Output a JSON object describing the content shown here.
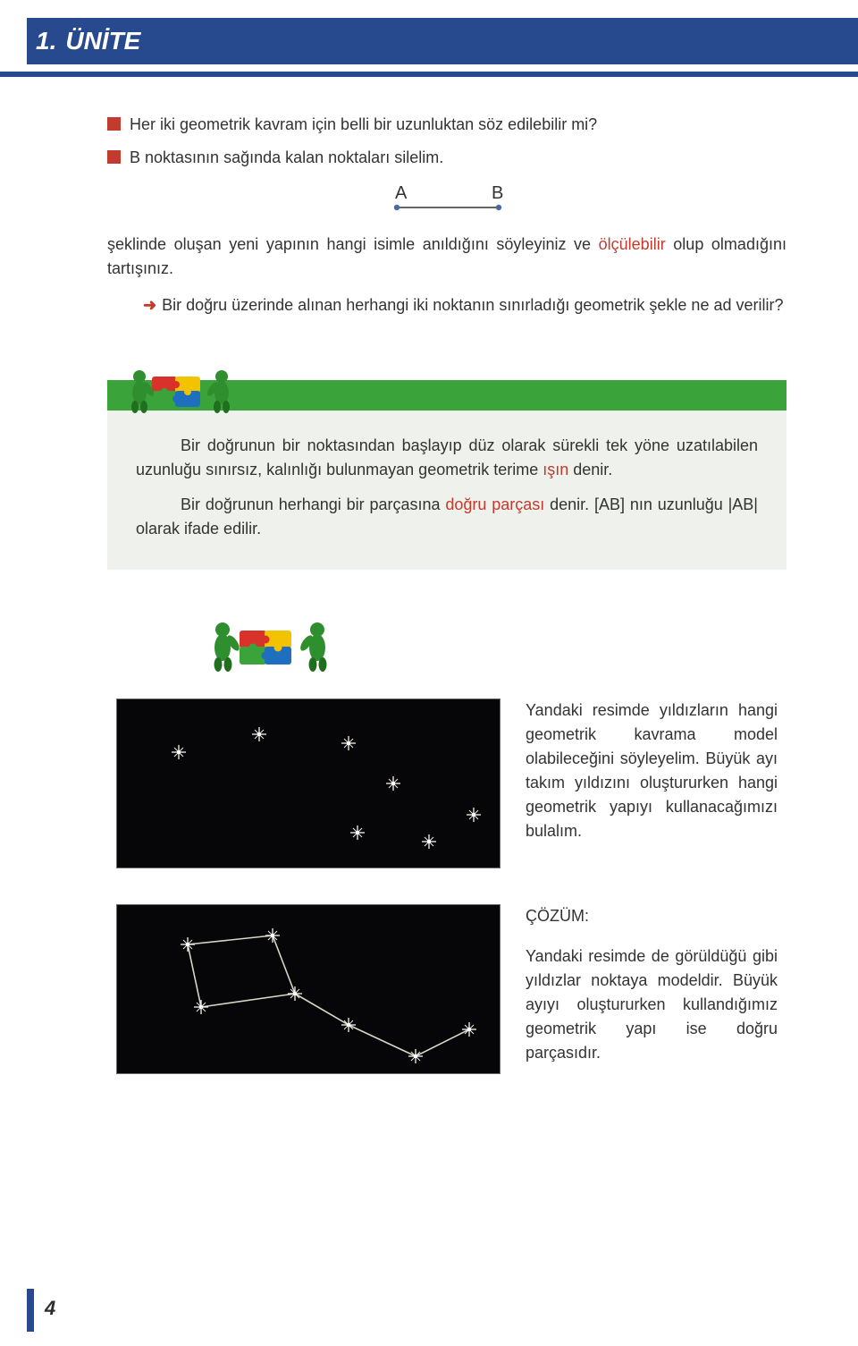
{
  "header": {
    "unit_number": "1.",
    "unit_label": "ÜNİTE"
  },
  "bullets": {
    "b1": "Her iki geometrik kavram için belli bir uzunluktan söz edilebilir mi?",
    "b2": "B noktasının sağında kalan noktaları silelim."
  },
  "segment": {
    "labelA": "A",
    "labelB": "B"
  },
  "para1_pre": "şeklinde oluşan yeni yapının hangi isimle anıldığını söyleyiniz ve ",
  "para1_olc": "ölçülebilir",
  "para1_post": " olup olmadığını tartışınız.",
  "arrow_para_pre": "Bir doğru üzerinde alınan herhangi iki noktanın sınırladığı geometrik şekle ne ad verilir?",
  "info": {
    "p1_pre": "Bir doğrunun bir noktasından başlayıp düz olarak sürekli tek yöne uzatılabilen uzunluğu sınırsız, kalınlığı bulunmayan geometrik terime ",
    "p1_isin": "ışın",
    "p1_post": " denir.",
    "p2_pre": "Bir doğrunun herhangi bir parçasına ",
    "p2_dparc": "doğru parçası",
    "p2_post": " denir. [AB] nın uzunluğu |AB| olarak ifade edilir."
  },
  "stars1_text": "Yandaki resimde yıldızların hangi geometrik kavrama model olabileceğini söyleyelim. Büyük ayı takım yıldızını oluştururken hangi geometrik yapıyı kullanacağımızı bulalım.",
  "stars2_title": "ÇÖZÜM:",
  "stars2_text": "Yandaki resimde de görüldüğü gibi yıldızlar noktaya modeldir. Büyük ayıyı oluştururken kullandığımız geometrik yapı ise doğru parçasıdır.",
  "page_number": "4",
  "puzzle": {
    "colors": {
      "red": "#d8322a",
      "green": "#3aa43a",
      "yellow": "#f3c200",
      "blue": "#1f6fc0",
      "figure": "#2f8f2f",
      "figure_dark": "#1f6f1f"
    }
  },
  "star_colors": {
    "bg": "#060608",
    "star": "#f8f6ea",
    "line": "#d8d6c8",
    "border": "#6b6b6b"
  },
  "ab_colors": {
    "line": "#333333",
    "dot": "#4a6aa0"
  }
}
